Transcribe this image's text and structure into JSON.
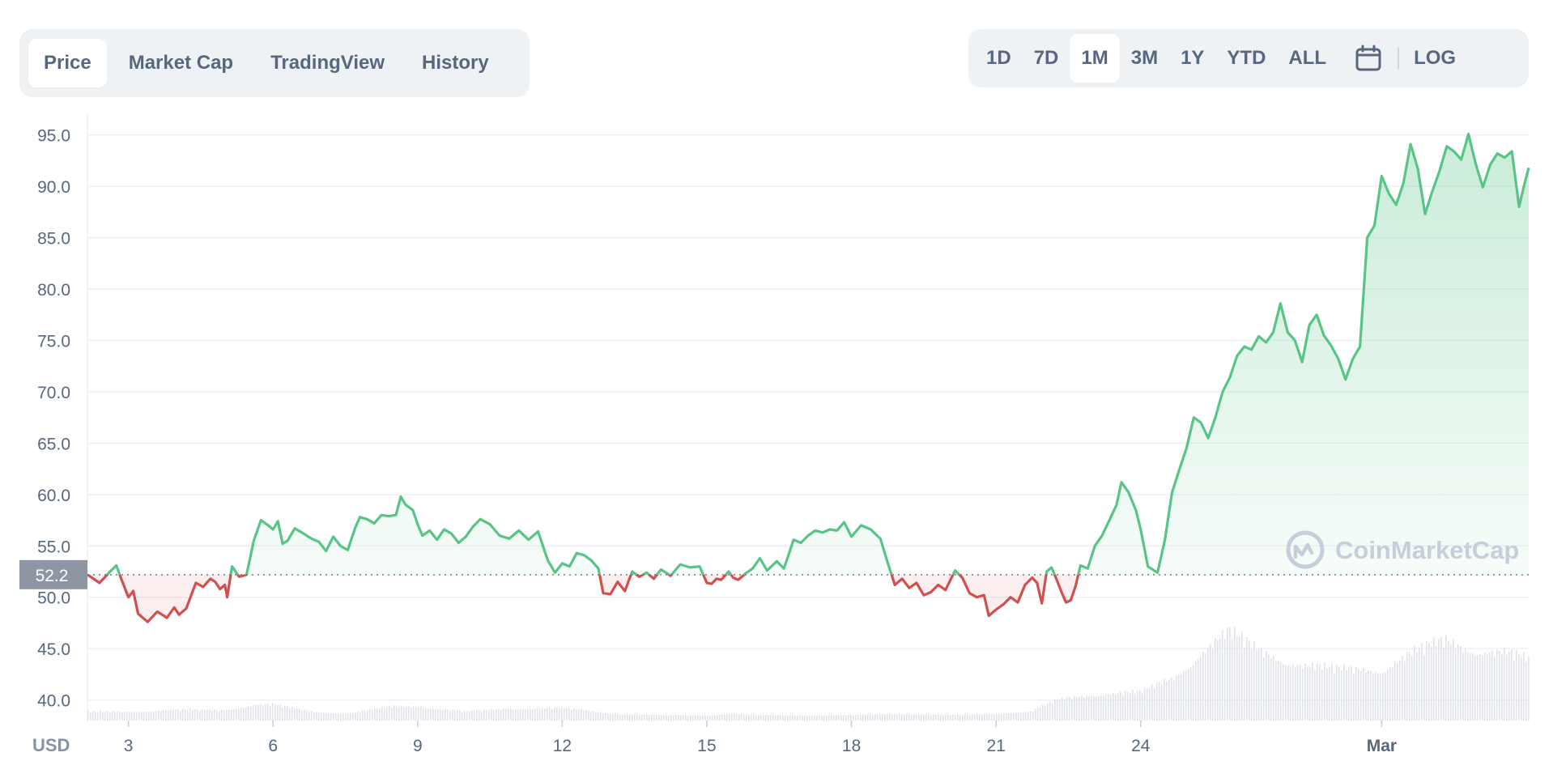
{
  "tabs": [
    {
      "label": "Price",
      "active": true
    },
    {
      "label": "Market Cap",
      "active": false
    },
    {
      "label": "TradingView",
      "active": false
    },
    {
      "label": "History",
      "active": false
    }
  ],
  "ranges": [
    {
      "label": "1D",
      "active": false
    },
    {
      "label": "7D",
      "active": false
    },
    {
      "label": "1M",
      "active": true
    },
    {
      "label": "3M",
      "active": false
    },
    {
      "label": "1Y",
      "active": false
    },
    {
      "label": "YTD",
      "active": false
    },
    {
      "label": "ALL",
      "active": false
    }
  ],
  "calendar_icon": "calendar-icon",
  "log_label": "LOG",
  "watermark": "CoinMarketCap",
  "currency_label": "USD",
  "colors": {
    "up": "#58c486",
    "down": "#d24f4f",
    "grid": "#eef0f4",
    "volume": "#dfe2ea",
    "current_label_bg": "#8e96a4"
  },
  "chart_data": {
    "type": "area",
    "ylim": [
      38.0,
      97.5
    ],
    "yticks": [
      40.0,
      45.0,
      50.0,
      55.0,
      60.0,
      65.0,
      70.0,
      75.0,
      80.0,
      85.0,
      90.0,
      95.0
    ],
    "ytick_labels": [
      "40.0",
      "45.0",
      "50.0",
      "55.0",
      "60.0",
      "65.0",
      "70.0",
      "75.0",
      "80.0",
      "85.0",
      "90.0",
      "95.0"
    ],
    "x_range": [
      2.3,
      3.03
    ],
    "xticks": [
      {
        "x": 3,
        "label": "3"
      },
      {
        "x": 6,
        "label": "6"
      },
      {
        "x": 9,
        "label": "9"
      },
      {
        "x": 12,
        "label": "12"
      },
      {
        "x": 15,
        "label": "15"
      },
      {
        "x": 18,
        "label": "18"
      },
      {
        "x": 21,
        "label": "21"
      },
      {
        "x": 24,
        "label": "24"
      },
      {
        "x": 29,
        "label": "Mar"
      }
    ],
    "x_domain": [
      2.15,
      32.05
    ],
    "baseline": 52.2,
    "current_price_label": "52.2",
    "series": [
      {
        "points": [
          [
            2.15,
            52.2
          ],
          [
            2.4,
            51.4
          ],
          [
            2.6,
            52.4
          ],
          [
            2.75,
            53.1
          ],
          [
            2.85,
            51.8
          ],
          [
            3.0,
            50.0
          ],
          [
            3.1,
            50.6
          ],
          [
            3.2,
            48.4
          ],
          [
            3.4,
            47.6
          ],
          [
            3.6,
            48.6
          ],
          [
            3.8,
            48.0
          ],
          [
            3.95,
            49.0
          ],
          [
            4.05,
            48.3
          ],
          [
            4.2,
            48.9
          ],
          [
            4.4,
            51.4
          ],
          [
            4.55,
            51.0
          ],
          [
            4.7,
            51.8
          ],
          [
            4.8,
            51.5
          ],
          [
            4.9,
            50.8
          ],
          [
            5.0,
            51.2
          ],
          [
            5.05,
            50.0
          ],
          [
            5.15,
            53.0
          ],
          [
            5.3,
            52.0
          ],
          [
            5.45,
            52.2
          ],
          [
            5.6,
            55.5
          ],
          [
            5.75,
            57.5
          ],
          [
            5.9,
            57.0
          ],
          [
            6.0,
            56.6
          ],
          [
            6.1,
            57.4
          ],
          [
            6.2,
            55.2
          ],
          [
            6.3,
            55.5
          ],
          [
            6.45,
            56.7
          ],
          [
            6.6,
            56.3
          ],
          [
            6.8,
            55.7
          ],
          [
            6.95,
            55.4
          ],
          [
            7.1,
            54.5
          ],
          [
            7.25,
            55.9
          ],
          [
            7.4,
            55.0
          ],
          [
            7.55,
            54.6
          ],
          [
            7.7,
            56.7
          ],
          [
            7.8,
            57.8
          ],
          [
            7.95,
            57.6
          ],
          [
            8.1,
            57.2
          ],
          [
            8.25,
            58.0
          ],
          [
            8.4,
            57.9
          ],
          [
            8.55,
            58.0
          ],
          [
            8.65,
            59.8
          ],
          [
            8.75,
            59.0
          ],
          [
            8.9,
            58.5
          ],
          [
            9.0,
            57.1
          ],
          [
            9.1,
            56.0
          ],
          [
            9.25,
            56.5
          ],
          [
            9.4,
            55.6
          ],
          [
            9.55,
            56.6
          ],
          [
            9.7,
            56.2
          ],
          [
            9.85,
            55.3
          ],
          [
            10.0,
            55.9
          ],
          [
            10.15,
            56.9
          ],
          [
            10.3,
            57.6
          ],
          [
            10.5,
            57.1
          ],
          [
            10.7,
            56.0
          ],
          [
            10.9,
            55.7
          ],
          [
            11.1,
            56.5
          ],
          [
            11.3,
            55.6
          ],
          [
            11.5,
            56.4
          ],
          [
            11.7,
            53.6
          ],
          [
            11.85,
            52.4
          ],
          [
            12.0,
            53.3
          ],
          [
            12.15,
            53.0
          ],
          [
            12.3,
            54.3
          ],
          [
            12.45,
            54.1
          ],
          [
            12.6,
            53.6
          ],
          [
            12.75,
            52.8
          ],
          [
            12.85,
            50.4
          ],
          [
            13.0,
            50.3
          ],
          [
            13.15,
            51.5
          ],
          [
            13.3,
            50.6
          ],
          [
            13.45,
            52.5
          ],
          [
            13.6,
            52.0
          ],
          [
            13.75,
            52.4
          ],
          [
            13.9,
            51.8
          ],
          [
            14.05,
            52.7
          ],
          [
            14.25,
            52.1
          ],
          [
            14.45,
            53.2
          ],
          [
            14.65,
            52.9
          ],
          [
            14.85,
            53.0
          ],
          [
            15.0,
            51.4
          ],
          [
            15.1,
            51.3
          ],
          [
            15.2,
            51.8
          ],
          [
            15.3,
            51.7
          ],
          [
            15.45,
            52.5
          ],
          [
            15.55,
            51.9
          ],
          [
            15.65,
            51.7
          ],
          [
            15.8,
            52.3
          ],
          [
            15.95,
            52.8
          ],
          [
            16.1,
            53.8
          ],
          [
            16.25,
            52.6
          ],
          [
            16.45,
            53.5
          ],
          [
            16.6,
            52.8
          ],
          [
            16.8,
            55.6
          ],
          [
            16.95,
            55.3
          ],
          [
            17.1,
            56.0
          ],
          [
            17.25,
            56.5
          ],
          [
            17.4,
            56.3
          ],
          [
            17.55,
            56.6
          ],
          [
            17.7,
            56.5
          ],
          [
            17.85,
            57.3
          ],
          [
            18.0,
            55.9
          ],
          [
            18.2,
            57.0
          ],
          [
            18.4,
            56.6
          ],
          [
            18.6,
            55.7
          ],
          [
            18.75,
            53.4
          ],
          [
            18.9,
            51.2
          ],
          [
            19.05,
            51.8
          ],
          [
            19.2,
            50.9
          ],
          [
            19.35,
            51.4
          ],
          [
            19.5,
            50.2
          ],
          [
            19.65,
            50.5
          ],
          [
            19.8,
            51.2
          ],
          [
            19.95,
            50.7
          ],
          [
            20.15,
            52.6
          ],
          [
            20.3,
            51.9
          ],
          [
            20.45,
            50.4
          ],
          [
            20.6,
            50.0
          ],
          [
            20.75,
            50.2
          ],
          [
            20.85,
            48.2
          ],
          [
            21.0,
            48.8
          ],
          [
            21.15,
            49.3
          ],
          [
            21.3,
            50.0
          ],
          [
            21.45,
            49.5
          ],
          [
            21.6,
            51.2
          ],
          [
            21.75,
            51.9
          ],
          [
            21.85,
            51.4
          ],
          [
            21.95,
            49.4
          ],
          [
            22.05,
            52.5
          ],
          [
            22.15,
            52.9
          ],
          [
            22.25,
            51.8
          ],
          [
            22.35,
            50.6
          ],
          [
            22.45,
            49.5
          ],
          [
            22.55,
            49.7
          ],
          [
            22.65,
            51.1
          ],
          [
            22.75,
            53.1
          ],
          [
            22.9,
            52.8
          ],
          [
            23.05,
            55.0
          ],
          [
            23.2,
            56.0
          ],
          [
            23.35,
            57.5
          ],
          [
            23.5,
            59.0
          ],
          [
            23.6,
            61.2
          ],
          [
            23.75,
            60.2
          ],
          [
            23.9,
            58.5
          ],
          [
            24.0,
            56.6
          ],
          [
            24.15,
            53.0
          ],
          [
            24.35,
            52.4
          ],
          [
            24.5,
            55.5
          ],
          [
            24.65,
            60.2
          ],
          [
            24.8,
            62.4
          ],
          [
            24.95,
            64.5
          ],
          [
            25.1,
            67.5
          ],
          [
            25.25,
            67.0
          ],
          [
            25.4,
            65.5
          ],
          [
            25.55,
            67.5
          ],
          [
            25.7,
            70.0
          ],
          [
            25.85,
            71.4
          ],
          [
            26.0,
            73.5
          ],
          [
            26.15,
            74.4
          ],
          [
            26.3,
            74.1
          ],
          [
            26.45,
            75.4
          ],
          [
            26.6,
            74.8
          ],
          [
            26.75,
            75.8
          ],
          [
            26.9,
            78.6
          ],
          [
            27.05,
            75.8
          ],
          [
            27.2,
            75.0
          ],
          [
            27.35,
            72.9
          ],
          [
            27.5,
            76.5
          ],
          [
            27.65,
            77.5
          ],
          [
            27.8,
            75.5
          ],
          [
            27.95,
            74.5
          ],
          [
            28.1,
            73.2
          ],
          [
            28.25,
            71.2
          ],
          [
            28.4,
            73.2
          ],
          [
            28.55,
            74.4
          ],
          [
            28.7,
            85.0
          ],
          [
            28.85,
            86.2
          ],
          [
            29.0,
            91.0
          ],
          [
            29.15,
            89.3
          ],
          [
            29.3,
            88.2
          ],
          [
            29.45,
            90.3
          ],
          [
            29.6,
            94.1
          ],
          [
            29.75,
            91.7
          ],
          [
            29.9,
            87.3
          ],
          [
            30.05,
            89.5
          ],
          [
            30.2,
            91.5
          ],
          [
            30.35,
            93.9
          ],
          [
            30.5,
            93.4
          ],
          [
            30.65,
            92.6
          ],
          [
            30.8,
            95.1
          ],
          [
            30.95,
            92.2
          ],
          [
            31.1,
            89.9
          ],
          [
            31.25,
            92.1
          ],
          [
            31.4,
            93.2
          ],
          [
            31.55,
            92.8
          ],
          [
            31.7,
            93.4
          ],
          [
            31.85,
            88.0
          ],
          [
            31.95,
            90.0
          ],
          [
            32.05,
            91.8
          ]
        ]
      }
    ],
    "volume": {
      "ylim": [
        0,
        100
      ],
      "points": [
        [
          2.15,
          10
        ],
        [
          3.0,
          10
        ],
        [
          4.0,
          12
        ],
        [
          5.0,
          12
        ],
        [
          5.6,
          18
        ],
        [
          6.0,
          18
        ],
        [
          6.8,
          10
        ],
        [
          7.5,
          8
        ],
        [
          8.5,
          16
        ],
        [
          9.0,
          16
        ],
        [
          10.0,
          10
        ],
        [
          11.0,
          14
        ],
        [
          12.0,
          14
        ],
        [
          13.0,
          8
        ],
        [
          14.0,
          6
        ],
        [
          15.0,
          6
        ],
        [
          15.5,
          8
        ],
        [
          16.0,
          6
        ],
        [
          17.0,
          6
        ],
        [
          18.0,
          6
        ],
        [
          19.0,
          8
        ],
        [
          20.0,
          6
        ],
        [
          21.0,
          8
        ],
        [
          21.7,
          10
        ],
        [
          22.3,
          24
        ],
        [
          23.0,
          30
        ],
        [
          24.0,
          32
        ],
        [
          24.7,
          50
        ],
        [
          25.3,
          80
        ],
        [
          25.8,
          100
        ],
        [
          26.3,
          84
        ],
        [
          26.8,
          72
        ],
        [
          27.3,
          64
        ],
        [
          28.0,
          58
        ],
        [
          29.0,
          58
        ],
        [
          29.5,
          74
        ],
        [
          30.3,
          90
        ],
        [
          30.8,
          82
        ],
        [
          31.5,
          78
        ],
        [
          32.05,
          68
        ]
      ]
    }
  }
}
